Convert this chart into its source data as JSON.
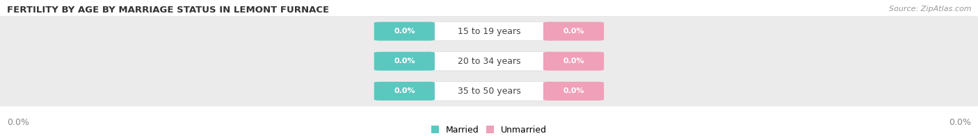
{
  "title": "FERTILITY BY AGE BY MARRIAGE STATUS IN LEMONT FURNACE",
  "source": "Source: ZipAtlas.com",
  "age_groups": [
    "15 to 19 years",
    "20 to 34 years",
    "35 to 50 years"
  ],
  "married_values": [
    0.0,
    0.0,
    0.0
  ],
  "unmarried_values": [
    0.0,
    0.0,
    0.0
  ],
  "married_color": "#5BC8C0",
  "unmarried_color": "#F0A0B8",
  "row_bg_color": "#EBEBEB",
  "background_color": "#FFFFFF",
  "title_fontsize": 9.5,
  "source_fontsize": 8,
  "label_fontsize": 9,
  "value_fontsize": 8,
  "legend_married": "Married",
  "legend_unmarried": "Unmarried",
  "left_axis_label": "0.0%",
  "right_axis_label": "0.0%"
}
